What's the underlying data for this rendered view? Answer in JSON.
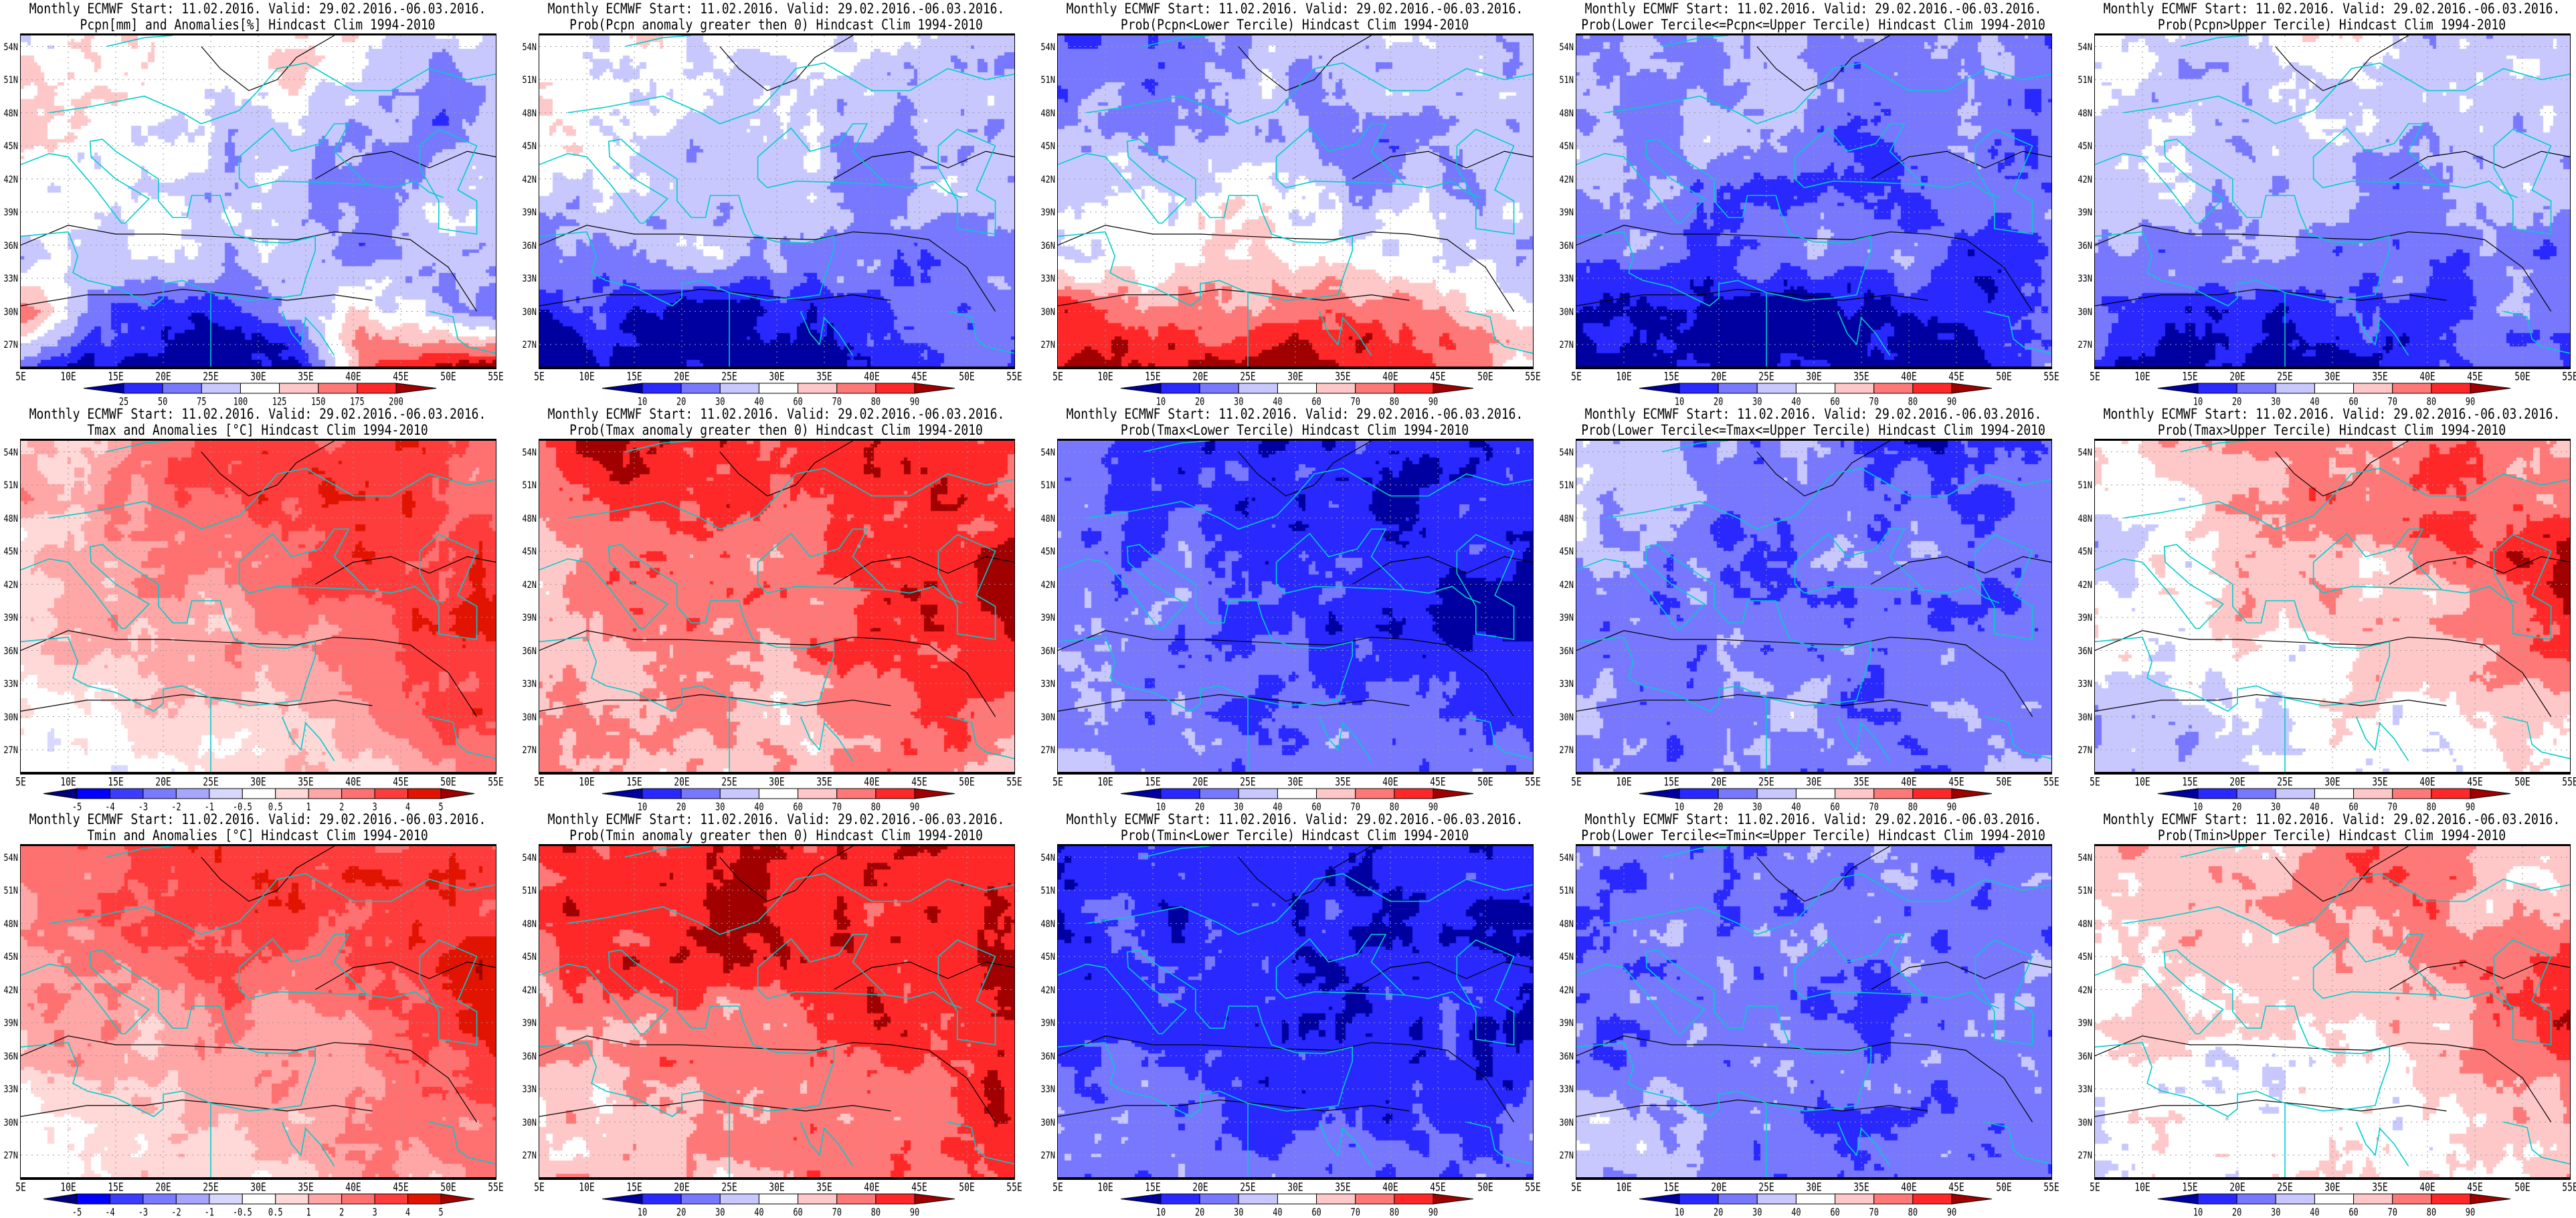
{
  "common": {
    "title_line1": "Monthly ECMWF Start: 11.02.2016. Valid: 29.02.2016.-06.03.2016.",
    "lon_labels": [
      "5E",
      "10E",
      "15E",
      "20E",
      "25E",
      "30E",
      "35E",
      "40E",
      "45E",
      "50E",
      "55E"
    ],
    "lat_labels": [
      "54N",
      "51N",
      "48N",
      "45N",
      "42N",
      "39N",
      "36N",
      "33N",
      "30N",
      "27N"
    ]
  },
  "colorbars": {
    "pcpn_anom": {
      "labels": [
        "25",
        "50",
        "75",
        "100",
        "125",
        "150",
        "175",
        "200"
      ],
      "colors": [
        "#0000a0",
        "#2828ff",
        "#7878ff",
        "#c8c8ff",
        "#ffffff",
        "#ffc8c8",
        "#ff7878",
        "#ff2828",
        "#a00000"
      ]
    },
    "prob": {
      "labels": [
        "10",
        "20",
        "30",
        "40",
        "60",
        "70",
        "80",
        "90"
      ],
      "colors": [
        "#0000a0",
        "#2828ff",
        "#7878ff",
        "#c8c8ff",
        "#ffffff",
        "#ffc8c8",
        "#ff7878",
        "#ff2828",
        "#a00000"
      ]
    },
    "temp_anom": {
      "labels": [
        "-5",
        "-4",
        "-3",
        "-2",
        "-1",
        "-0.5",
        "0.5",
        "1",
        "2",
        "3",
        "4",
        "5"
      ],
      "colors": [
        "#00007f",
        "#0000ff",
        "#3c3cff",
        "#7a7aff",
        "#a6a6ff",
        "#d8d8ff",
        "#ffffff",
        "#ffd8d8",
        "#ffa6a6",
        "#ff7070",
        "#ff3c3c",
        "#e01400",
        "#a00000"
      ]
    }
  },
  "colors": {
    "coastline": "#00cccc",
    "contour": "#000000",
    "grid": "#999999"
  },
  "chart_data": {
    "type": "heatmap",
    "xlim": [
      5,
      55
    ],
    "ylim": [
      25,
      55
    ],
    "panels": [
      {
        "title": "Pcpn[mm] and Anomalies[%] Hindcast Clim 1994-2010",
        "colorbar": "pcpn_anom"
      },
      {
        "title": "Prob(Pcpn anomaly greater then 0) Hindcast Clim 1994-2010",
        "colorbar": "prob"
      },
      {
        "title": "Prob(Pcpn<Lower Tercile) Hindcast Clim 1994-2010",
        "colorbar": "prob"
      },
      {
        "title": "Prob(Lower Tercile<=Pcpn<=Upper Tercile) Hindcast Clim 1994-2010",
        "colorbar": "prob"
      },
      {
        "title": "Prob(Pcpn>Upper Tercile) Hindcast Clim 1994-2010",
        "colorbar": "prob"
      },
      {
        "title": "Tmax and Anomalies [°C] Hindcast Clim 1994-2010",
        "colorbar": "temp_anom"
      },
      {
        "title": "Prob(Tmax anomaly greater then 0) Hindcast Clim 1994-2010",
        "colorbar": "prob"
      },
      {
        "title": "Prob(Tmax<Lower Tercile) Hindcast Clim 1994-2010",
        "colorbar": "prob"
      },
      {
        "title": "Prob(Lower Tercile<=Tmax<=Upper Tercile) Hindcast Clim 1994-2010",
        "colorbar": "prob"
      },
      {
        "title": "Prob(Tmax>Upper Tercile) Hindcast Clim 1994-2010",
        "colorbar": "prob"
      },
      {
        "title": "Tmin and Anomalies [°C] Hindcast Clim 1994-2010",
        "colorbar": "temp_anom"
      },
      {
        "title": "Prob(Tmin anomaly greater then 0) Hindcast Clim 1994-2010",
        "colorbar": "prob"
      },
      {
        "title": "Prob(Tmin<Lower Tercile) Hindcast Clim 1994-2010",
        "colorbar": "prob"
      },
      {
        "title": "Prob(Lower Tercile<=Tmin<=Upper Tercile) Hindcast Clim 1994-2010",
        "colorbar": "prob"
      },
      {
        "title": "Prob(Tmin>Upper Tercile) Hindcast Clim 1994-2010",
        "colorbar": "prob"
      }
    ]
  }
}
